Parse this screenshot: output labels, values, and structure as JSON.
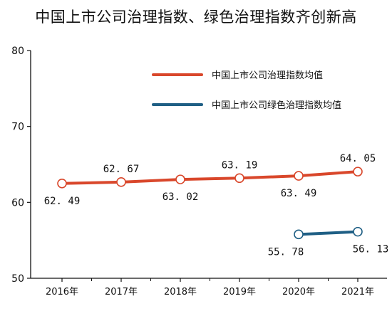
{
  "title": "中国上市公司治理指数、绿色治理指数齐创新高",
  "chart_data": {
    "type": "line",
    "title": "中国上市公司治理指数、绿色治理指数齐创新高",
    "xlabel": "",
    "ylabel": "",
    "categories": [
      "2016年",
      "2017年",
      "2018年",
      "2019年",
      "2020年",
      "2021年"
    ],
    "ylim": [
      50,
      80
    ],
    "yticks": [
      50,
      60,
      70,
      80
    ],
    "grid": false,
    "legend_position": "top-right",
    "series": [
      {
        "name": "中国上市公司治理指数均值",
        "color": "#d9472b",
        "values": [
          62.49,
          62.67,
          63.02,
          63.19,
          63.49,
          64.05
        ],
        "labels": [
          "62. 49",
          "62. 67",
          "63. 02",
          "63. 19",
          "63. 49",
          "64. 05"
        ]
      },
      {
        "name": "中国上市公司绿色治理指数均值",
        "color": "#1f5f85",
        "values": [
          null,
          null,
          null,
          null,
          55.78,
          56.13
        ],
        "labels": [
          null,
          null,
          null,
          null,
          "55. 78",
          "56. 13"
        ]
      }
    ]
  }
}
